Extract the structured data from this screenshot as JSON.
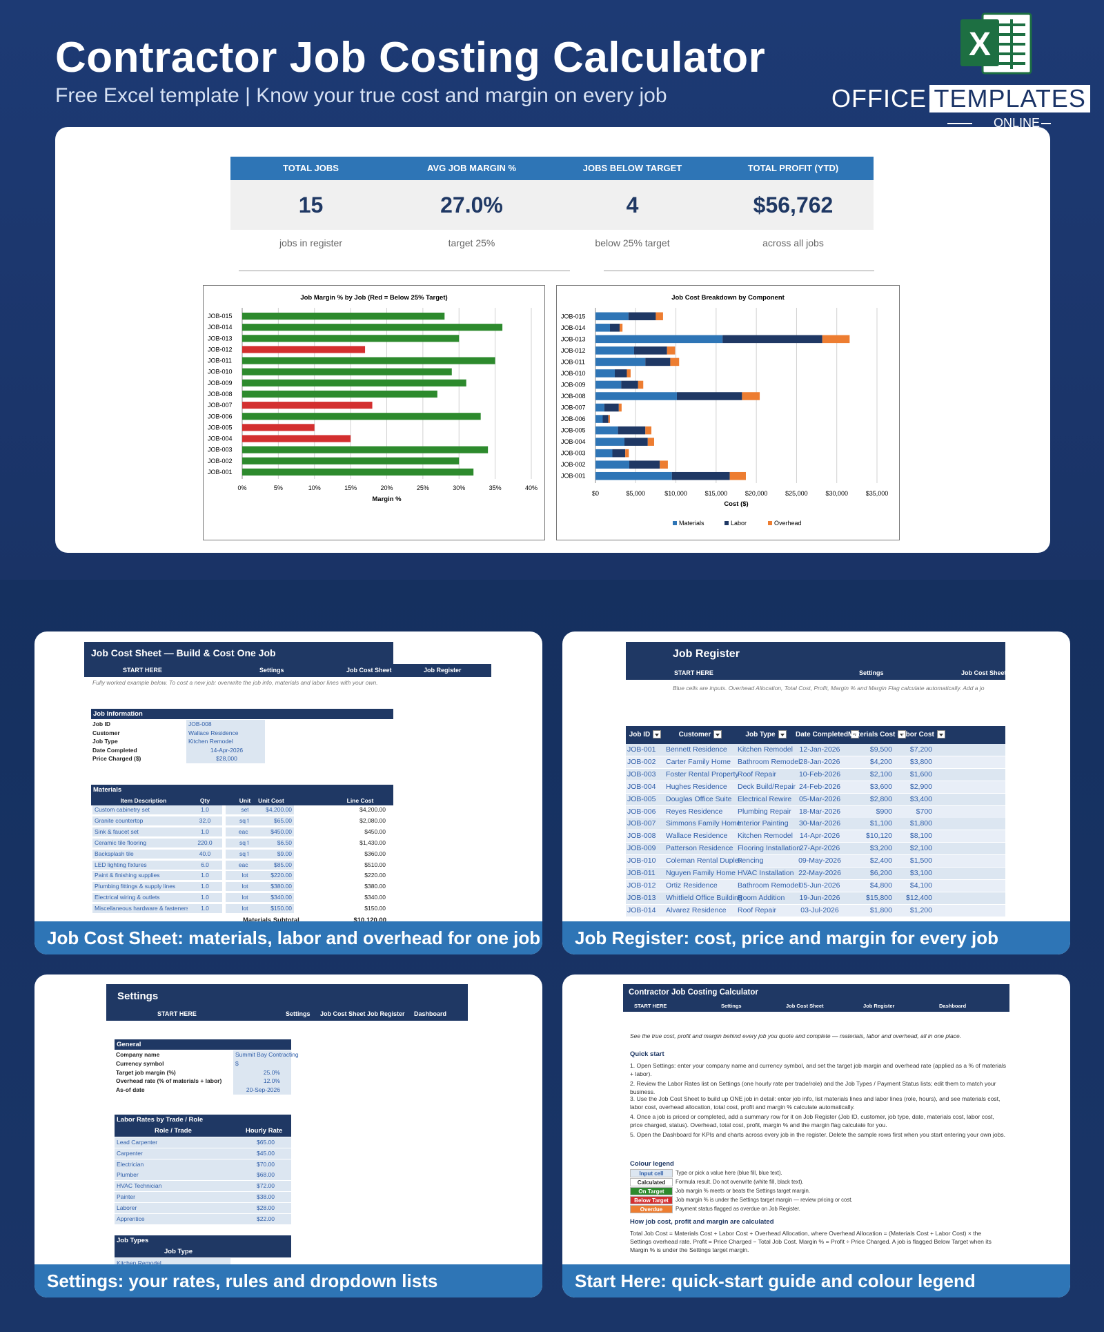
{
  "header": {
    "title": "Contractor Job Costing Calculator",
    "subtitle": "Free Excel template  |  Know your true cost and margin on every job",
    "logo": {
      "office": "OFFICE",
      "templates": "TEMPLATES",
      "online": "ONLINE",
      "icon": "excel-x-icon",
      "accent": "#1d6f42"
    }
  },
  "dashboard": {
    "kpis": [
      {
        "label": "TOTAL JOBS",
        "value": "15",
        "sub": "jobs in register"
      },
      {
        "label": "AVG JOB MARGIN %",
        "value": "27.0%",
        "sub": "target 25%"
      },
      {
        "label": "JOBS BELOW TARGET",
        "value": "4",
        "sub": "below 25% target"
      },
      {
        "label": "TOTAL PROFIT (YTD)",
        "value": "$56,762",
        "sub": "across all jobs"
      }
    ],
    "colors": {
      "green": "#2d8a2d",
      "red": "#d32f2f",
      "materials": "#2e75b6",
      "labor": "#1f3864",
      "overhead": "#ed7d31"
    }
  },
  "chart_data": [
    {
      "type": "bar",
      "orientation": "horizontal",
      "title": "Job Margin % by Job (Red = Below 25% Target)",
      "xlabel": "Margin %",
      "ylabel": "",
      "xlim": [
        0,
        40
      ],
      "xticks": [
        "0%",
        "5%",
        "10%",
        "15%",
        "20%",
        "25%",
        "30%",
        "35%",
        "40%"
      ],
      "categories": [
        "JOB-015",
        "JOB-014",
        "JOB-013",
        "JOB-012",
        "JOB-011",
        "JOB-010",
        "JOB-009",
        "JOB-008",
        "JOB-007",
        "JOB-006",
        "JOB-005",
        "JOB-004",
        "JOB-003",
        "JOB-002",
        "JOB-001"
      ],
      "values": [
        28,
        36,
        30,
        17,
        35,
        29,
        31,
        27,
        18,
        33,
        10,
        15,
        34,
        30,
        32
      ],
      "below_target": [
        false,
        false,
        false,
        true,
        false,
        false,
        false,
        false,
        true,
        false,
        true,
        true,
        false,
        false,
        false
      ],
      "grid": true
    },
    {
      "type": "bar",
      "orientation": "horizontal",
      "stacked": true,
      "title": "Job Cost Breakdown by Component",
      "xlabel": "Cost ($)",
      "ylabel": "",
      "xlim": [
        0,
        35000
      ],
      "xticks": [
        "$0",
        "$5,000",
        "$10,000",
        "$15,000",
        "$20,000",
        "$25,000",
        "$30,000",
        "$35,000"
      ],
      "categories": [
        "JOB-015",
        "JOB-014",
        "JOB-013",
        "JOB-012",
        "JOB-011",
        "JOB-010",
        "JOB-009",
        "JOB-008",
        "JOB-007",
        "JOB-006",
        "JOB-005",
        "JOB-004",
        "JOB-003",
        "JOB-002",
        "JOB-001"
      ],
      "series": [
        {
          "name": "Materials",
          "values": [
            4100,
            1800,
            15800,
            4800,
            6200,
            2400,
            3200,
            10120,
            1100,
            900,
            2800,
            3600,
            2100,
            4200,
            9500
          ]
        },
        {
          "name": "Labor",
          "values": [
            3400,
            1200,
            12400,
            4100,
            3100,
            1500,
            2100,
            8100,
            1800,
            700,
            3400,
            2900,
            1600,
            3800,
            7200
          ]
        },
        {
          "name": "Overhead",
          "values": [
            900,
            360,
            3400,
            1000,
            1100,
            470,
            640,
            2200,
            350,
            200,
            750,
            790,
            450,
            1000,
            2000
          ]
        }
      ],
      "legend": "bottom",
      "grid": true
    }
  ],
  "sheets": {
    "job_cost": {
      "footer": "Job Cost Sheet: materials, labor and overhead for one job",
      "title": "Job Cost Sheet — Build & Cost One Job",
      "nav": [
        "START HERE",
        "Settings",
        "Job Cost Sheet",
        "Job Register"
      ],
      "note": "Fully worked example below. To cost a new job: overwrite the job info, materials and labor lines with your own.",
      "info_header": "Job Information",
      "info": [
        {
          "label": "Job ID",
          "value": "JOB-008"
        },
        {
          "label": "Customer",
          "value": "Wallace Residence"
        },
        {
          "label": "Job Type",
          "value": "Kitchen Remodel"
        },
        {
          "label": "Date Completed",
          "value": "14-Apr-2026"
        },
        {
          "label": "Price Charged ($)",
          "value": "$28,000"
        }
      ],
      "materials_header": "Materials",
      "columns": [
        "Item Description",
        "Qty",
        "Unit",
        "Unit Cost",
        "Line Cost"
      ],
      "materials": [
        [
          "Custom cabinetry set",
          "1.0",
          "set",
          "$4,200.00",
          "$4,200.00"
        ],
        [
          "Granite countertop",
          "32.0",
          "sq ft",
          "$65.00",
          "$2,080.00"
        ],
        [
          "Sink & faucet set",
          "1.0",
          "each",
          "$450.00",
          "$450.00"
        ],
        [
          "Ceramic tile flooring",
          "220.0",
          "sq ft",
          "$6.50",
          "$1,430.00"
        ],
        [
          "Backsplash tile",
          "40.0",
          "sq ft",
          "$9.00",
          "$360.00"
        ],
        [
          "LED lighting fixtures",
          "6.0",
          "each",
          "$85.00",
          "$510.00"
        ],
        [
          "Paint & finishing supplies",
          "1.0",
          "lot",
          "$220.00",
          "$220.00"
        ],
        [
          "Plumbing fittings & supply lines",
          "1.0",
          "lot",
          "$380.00",
          "$380.00"
        ],
        [
          "Electrical wiring & outlets",
          "1.0",
          "lot",
          "$340.00",
          "$340.00"
        ],
        [
          "Miscellaneous hardware & fasteners",
          "1.0",
          "lot",
          "$150.00",
          "$150.00"
        ]
      ],
      "subtotal_label": "Materials Subtotal",
      "subtotal_value": "$10,120.00"
    },
    "register": {
      "footer": "Job Register: cost, price and margin for every job",
      "title": "Job Register",
      "nav": [
        "START HERE",
        "Settings",
        "Job Cost Sheet"
      ],
      "note": "Blue cells are inputs. Overhead Allocation, Total Cost, Profit, Margin % and Margin Flag calculate automatically. Add a jo",
      "columns": [
        "Job ID",
        "Customer",
        "Job Type",
        "Date Completed",
        "Materials Cost",
        "Labor Cost"
      ],
      "rows": [
        [
          "JOB-001",
          "Bennett Residence",
          "Kitchen Remodel",
          "12-Jan-2026",
          "$9,500",
          "$7,200"
        ],
        [
          "JOB-002",
          "Carter Family Home",
          "Bathroom Remodel",
          "28-Jan-2026",
          "$4,200",
          "$3,800"
        ],
        [
          "JOB-003",
          "Foster Rental Property",
          "Roof Repair",
          "10-Feb-2026",
          "$2,100",
          "$1,600"
        ],
        [
          "JOB-004",
          "Hughes Residence",
          "Deck Build/Repair",
          "24-Feb-2026",
          "$3,600",
          "$2,900"
        ],
        [
          "JOB-005",
          "Douglas Office Suite",
          "Electrical Rewire",
          "05-Mar-2026",
          "$2,800",
          "$3,400"
        ],
        [
          "JOB-006",
          "Reyes Residence",
          "Plumbing Repair",
          "18-Mar-2026",
          "$900",
          "$700"
        ],
        [
          "JOB-007",
          "Simmons Family Home",
          "Interior Painting",
          "30-Mar-2026",
          "$1,100",
          "$1,800"
        ],
        [
          "JOB-008",
          "Wallace Residence",
          "Kitchen Remodel",
          "14-Apr-2026",
          "$10,120",
          "$8,100"
        ],
        [
          "JOB-009",
          "Patterson Residence",
          "Flooring Installation",
          "27-Apr-2026",
          "$3,200",
          "$2,100"
        ],
        [
          "JOB-010",
          "Coleman Rental Duplex",
          "Fencing",
          "09-May-2026",
          "$2,400",
          "$1,500"
        ],
        [
          "JOB-011",
          "Nguyen Family Home",
          "HVAC Installation",
          "22-May-2026",
          "$6,200",
          "$3,100"
        ],
        [
          "JOB-012",
          "Ortiz Residence",
          "Bathroom Remodel",
          "05-Jun-2026",
          "$4,800",
          "$4,100"
        ],
        [
          "JOB-013",
          "Whitfield Office Building",
          "Room Addition",
          "19-Jun-2026",
          "$15,800",
          "$12,400"
        ],
        [
          "JOB-014",
          "Alvarez Residence",
          "Roof Repair",
          "03-Jul-2026",
          "$1,800",
          "$1,200"
        ]
      ]
    },
    "settings": {
      "footer": "Settings: your rates, rules and dropdown lists",
      "title": "Settings",
      "nav": [
        "START HERE",
        "Settings",
        "Job Cost Sheet",
        "Job Register",
        "Dashboard"
      ],
      "general_header": "General",
      "general": [
        {
          "label": "Company name",
          "value": "Summit Bay Contracting"
        },
        {
          "label": "Currency symbol",
          "value": "$"
        },
        {
          "label": "Target job margin (%)",
          "value": "25.0%"
        },
        {
          "label": "Overhead rate (% of materials + labor)",
          "value": "12.0%"
        },
        {
          "label": "As-of date",
          "value": "20-Sep-2026"
        }
      ],
      "labor_header": "Labor Rates by Trade / Role",
      "labor_columns": [
        "Role / Trade",
        "Hourly Rate"
      ],
      "labor": [
        [
          "Lead Carpenter",
          "$65.00"
        ],
        [
          "Carpenter",
          "$45.00"
        ],
        [
          "Electrician",
          "$70.00"
        ],
        [
          "Plumber",
          "$68.00"
        ],
        [
          "HVAC Technician",
          "$72.00"
        ],
        [
          "Painter",
          "$38.00"
        ],
        [
          "Laborer",
          "$28.00"
        ],
        [
          "Apprentice",
          "$22.00"
        ]
      ],
      "types_header": "Job Types",
      "types_column": "Job Type",
      "types": [
        "Kitchen Remodel"
      ]
    },
    "start": {
      "footer": "Start Here: quick-start guide and colour legend",
      "title": "Contractor Job Costing Calculator",
      "nav": [
        "START HERE",
        "Settings",
        "Job Cost Sheet",
        "Job Register",
        "Dashboard"
      ],
      "intro": "See the true cost, profit and margin behind every job you quote and complete — materials, labor and overhead, all in one place.",
      "quick_header": "Quick start",
      "steps": [
        "1.  Open Settings: enter your company name and currency symbol, and set the target job margin and overhead rate (applied as a % of materials + labor).",
        "2.  Review the Labor Rates list on Settings (one hourly rate per trade/role) and the Job Types / Payment Status lists; edit them to match your business.",
        "3.  Use the Job Cost Sheet to build up ONE job in detail: enter job info, list materials lines and labor lines (role, hours), and see materials cost, labor cost, overhead allocation, total cost, profit and margin % calculate automatically.",
        "4.  Once a job is priced or completed, add a summary row for it on Job Register (Job ID, customer, job type, date, materials cost, labor cost, price charged, status). Overhead, total cost, profit, margin % and the margin flag calculate for you.",
        "5.  Open the Dashboard for KPIs and charts across every job in the register. Delete the sample rows first when you start entering your own jobs."
      ],
      "legend_header": "Colour legend",
      "legend": [
        {
          "tag": "Input cell",
          "desc": "Type or pick a value here (blue fill, blue text).",
          "bg": "#dce6f1",
          "fg": "#2e5da8"
        },
        {
          "tag": "Calculated",
          "desc": "Formula result. Do not overwrite (white fill, black text).",
          "bg": "#ffffff",
          "fg": "#222222"
        },
        {
          "tag": "On Target",
          "desc": "Job margin % meets or beats the Settings target margin.",
          "bg": "#2d8a2d",
          "fg": "#ffffff"
        },
        {
          "tag": "Below Target",
          "desc": "Job margin % is under the Settings target margin — review pricing or cost.",
          "bg": "#d32f2f",
          "fg": "#ffffff"
        },
        {
          "tag": "Overdue",
          "desc": "Payment status flagged as overdue on Job Register.",
          "bg": "#ed7d31",
          "fg": "#ffffff"
        }
      ],
      "calc_header": "How job cost, profit and margin are calculated",
      "calc": "Total Job Cost = Materials Cost + Labor Cost + Overhead Allocation, where Overhead Allocation = (Materials Cost + Labor Cost) × the Settings overhead rate. Profit = Price Charged − Total Job Cost. Margin % = Profit ÷ Price Charged. A job is flagged Below Target when its Margin % is under the Settings target margin."
    }
  }
}
